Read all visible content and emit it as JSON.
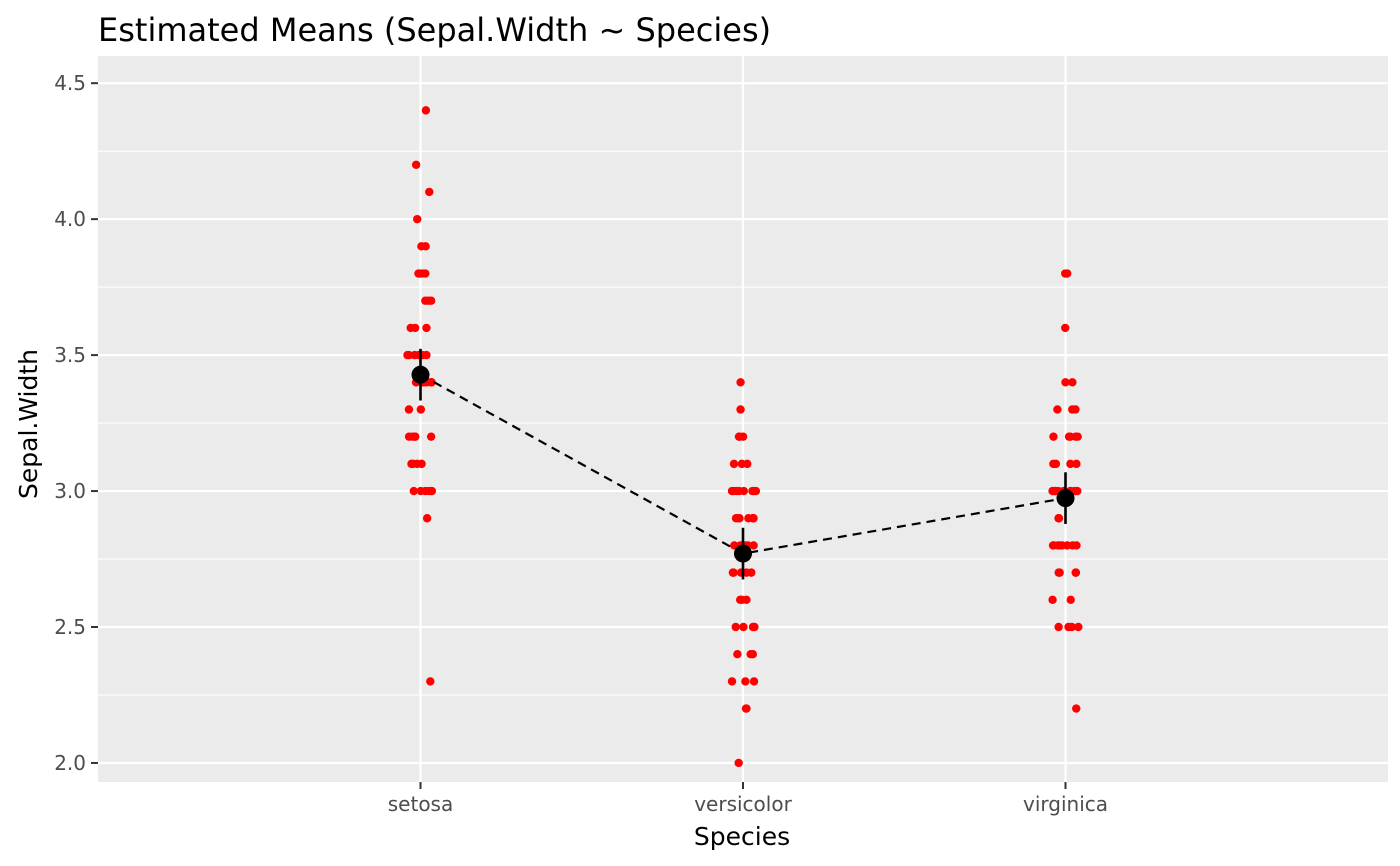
{
  "chart_data": {
    "type": "scatter",
    "title": "Estimated Means (Sepal.Width ~ Species)",
    "xlabel": "Species",
    "ylabel": "Sepal.Width",
    "categories": [
      "setosa",
      "versicolor",
      "virginica"
    ],
    "ylim": [
      1.93,
      4.6
    ],
    "yticks": [
      2.0,
      2.5,
      3.0,
      3.5,
      4.0,
      4.5
    ],
    "ytick_labels": [
      "2.0",
      "2.5",
      "3.0",
      "3.5",
      "4.0",
      "4.5"
    ],
    "grid": true,
    "colors": {
      "panel": "#ebebeb",
      "grid": "#ffffff",
      "points": "#ff0000",
      "means": "#000000"
    },
    "observations": [
      {
        "category": "setosa",
        "values": [
          3.5,
          3.0,
          3.2,
          3.1,
          3.6,
          3.9,
          3.4,
          3.4,
          2.9,
          3.1,
          3.7,
          3.4,
          3.0,
          3.0,
          4.0,
          4.4,
          3.9,
          3.5,
          3.8,
          3.8,
          3.4,
          3.7,
          3.6,
          3.3,
          3.4,
          3.0,
          3.4,
          3.5,
          3.4,
          3.2,
          3.1,
          3.4,
          4.1,
          4.2,
          3.1,
          3.2,
          3.5,
          3.6,
          3.0,
          3.4,
          3.5,
          2.3,
          3.2,
          3.5,
          3.8,
          3.0,
          3.8,
          3.2,
          3.7,
          3.3
        ]
      },
      {
        "category": "versicolor",
        "values": [
          3.2,
          3.2,
          3.1,
          2.3,
          2.8,
          2.8,
          3.3,
          2.4,
          2.9,
          2.7,
          2.0,
          3.0,
          2.2,
          2.9,
          2.9,
          3.1,
          3.0,
          2.7,
          2.2,
          2.5,
          3.2,
          2.8,
          2.5,
          2.8,
          2.9,
          3.0,
          2.8,
          3.0,
          2.9,
          2.6,
          2.4,
          2.4,
          2.7,
          2.7,
          3.0,
          3.4,
          3.1,
          2.3,
          3.0,
          2.5,
          2.6,
          3.0,
          2.6,
          2.3,
          2.7,
          3.0,
          2.9,
          2.9,
          2.5,
          2.8
        ]
      },
      {
        "category": "virginica",
        "values": [
          3.3,
          2.7,
          3.0,
          2.9,
          3.0,
          3.0,
          2.5,
          2.9,
          2.5,
          3.6,
          3.2,
          2.7,
          3.0,
          2.5,
          2.8,
          3.2,
          3.0,
          3.8,
          2.6,
          2.2,
          3.2,
          2.8,
          2.8,
          2.7,
          3.3,
          3.2,
          2.8,
          3.0,
          2.8,
          3.0,
          2.8,
          3.8,
          2.8,
          2.8,
          2.6,
          3.0,
          3.4,
          3.1,
          3.0,
          3.1,
          3.1,
          3.1,
          2.7,
          3.2,
          3.3,
          3.0,
          2.5,
          3.0,
          3.4,
          3.0
        ]
      }
    ],
    "means": [
      {
        "category": "setosa",
        "mean": 3.428,
        "lower": 3.333,
        "upper": 3.523
      },
      {
        "category": "versicolor",
        "mean": 2.77,
        "lower": 2.675,
        "upper": 2.865
      },
      {
        "category": "virginica",
        "mean": 2.974,
        "lower": 2.879,
        "upper": 3.069
      }
    ]
  }
}
